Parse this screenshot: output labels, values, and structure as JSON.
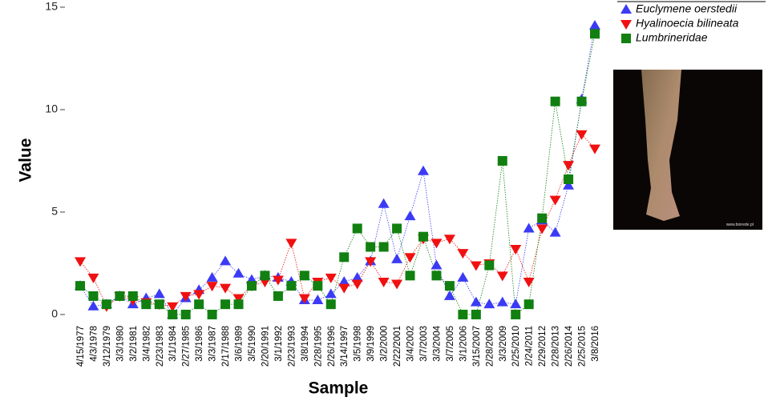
{
  "chart_data": {
    "type": "scatter-line",
    "x_label": "Sample",
    "y_label": "Value",
    "categories": [
      "4/15/1977",
      "4/3/1978",
      "3/12/1979",
      "3/3/1980",
      "3/2/1981",
      "3/4/1982",
      "2/23/1983",
      "3/1/1984",
      "2/27/1985",
      "3/3/1986",
      "3/3/1987",
      "2/17/1988",
      "3/6/1989",
      "3/5/1990",
      "2/20/1991",
      "3/1/1992",
      "2/23/1993",
      "3/8/1994",
      "2/28/1995",
      "2/26/1996",
      "3/14/1997",
      "3/5/1998",
      "3/9/1999",
      "3/2/2000",
      "2/22/2001",
      "3/4/2002",
      "3/7/2003",
      "3/3/2004",
      "3/7/2005",
      "3/1/2006",
      "3/15/2007",
      "2/28/2008",
      "3/3/2009",
      "2/25/2010",
      "2/24/2011",
      "2/29/2012",
      "2/28/2013",
      "2/26/2014",
      "2/25/2015",
      "3/8/2016"
    ],
    "series": [
      {
        "name": "Euclymene oerstedii",
        "color": "#3b3bf5",
        "marker": "triangle-up",
        "values": [
          1.4,
          0.4,
          0.5,
          0.9,
          0.5,
          0.8,
          1.0,
          0,
          0.8,
          1.2,
          1.8,
          2.6,
          2.0,
          1.7,
          1.9,
          1.8,
          1.6,
          0.7,
          0.7,
          1.0,
          1.6,
          1.8,
          2.6,
          5.4,
          2.7,
          4.8,
          7.0,
          2.4,
          0.9,
          1.8,
          0.6,
          0.5,
          0.6,
          0.5,
          4.2,
          4.6,
          4.0,
          6.3,
          10.5,
          14.1
        ]
      },
      {
        "name": "Hyalinoecia bilineata",
        "color": "#f01010",
        "marker": "triangle-down",
        "values": [
          2.6,
          1.8,
          0.4,
          0.9,
          0.7,
          0.6,
          0.5,
          0.4,
          0.9,
          1.0,
          1.4,
          1.3,
          0.8,
          1.4,
          1.6,
          1.7,
          3.5,
          0.8,
          1.6,
          1.8,
          1.3,
          1.5,
          2.6,
          1.6,
          1.5,
          2.8,
          3.7,
          3.5,
          3.7,
          3.0,
          2.4,
          2.5,
          1.9,
          3.2,
          1.6,
          4.2,
          5.6,
          7.3,
          8.8,
          8.1
        ]
      },
      {
        "name": "Lumbrineridae",
        "color": "#118011",
        "marker": "square",
        "values": [
          1.4,
          0.9,
          0.5,
          0.9,
          0.9,
          0.5,
          0.5,
          0,
          0,
          0.5,
          0,
          0.5,
          0.5,
          1.4,
          1.9,
          0.9,
          1.4,
          1.9,
          1.4,
          0.5,
          2.8,
          4.2,
          3.3,
          3.3,
          4.2,
          1.9,
          3.8,
          1.9,
          1.4,
          0,
          0,
          2.4,
          7.5,
          0,
          0.5,
          4.7,
          10.4,
          6.6,
          10.4,
          13.7
        ]
      }
    ],
    "ylim": [
      -0.4,
      15.3
    ],
    "yticks": [
      0,
      5,
      10,
      15
    ],
    "grid": false,
    "legend": "top-right",
    "image_credit": "www.biorede.pt"
  }
}
